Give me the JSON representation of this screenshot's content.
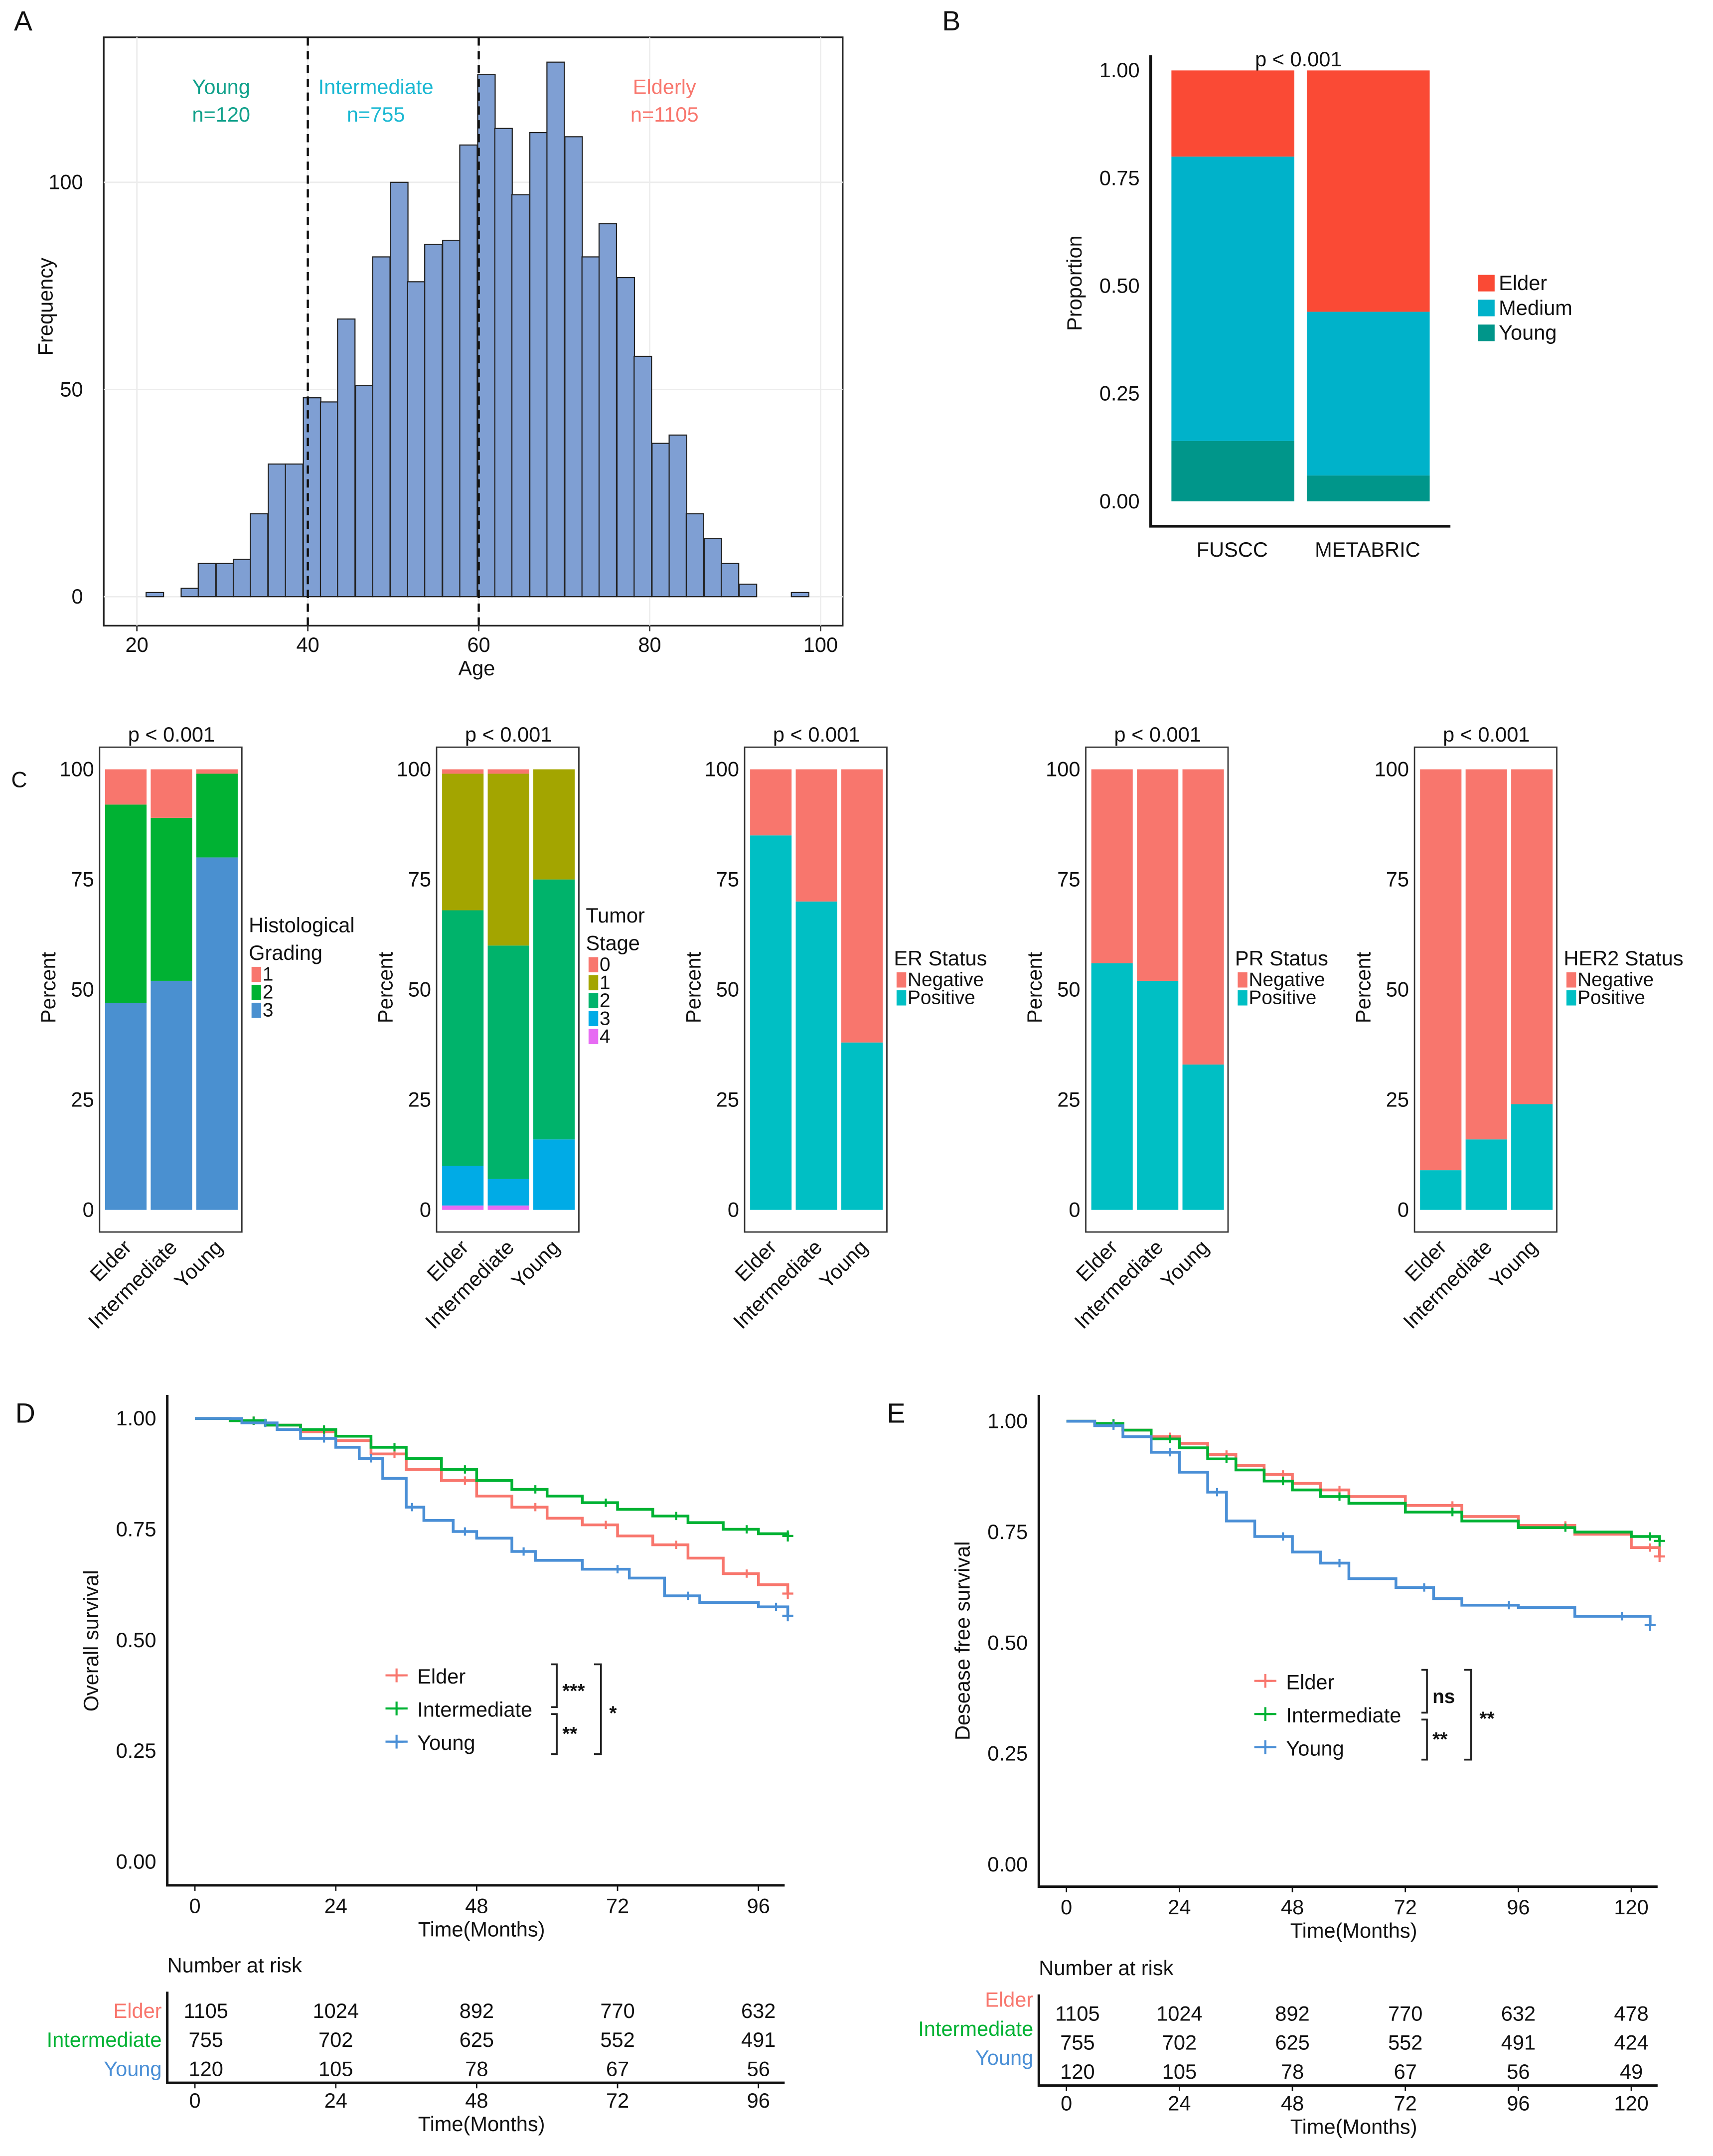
{
  "chart_data": [
    {
      "panel": "A",
      "type": "bar",
      "subtype": "histogram",
      "xlabel": "Age",
      "ylabel": "Frequency",
      "xlim": [
        17,
        103
      ],
      "ylim": [
        -7,
        135
      ],
      "xticks": [
        "20",
        "40",
        "60",
        "80",
        "100"
      ],
      "xtick_values": [
        20,
        40,
        60,
        80,
        100
      ],
      "yticks": [
        "0",
        "50",
        "100"
      ],
      "ytick_values": [
        0,
        50,
        100
      ],
      "grid": true,
      "binwidth": 2.04,
      "bin_centers": [
        22.1,
        24.1,
        26.2,
        28.2,
        30.3,
        32.3,
        34.3,
        36.4,
        38.4,
        40.5,
        42.5,
        44.5,
        46.6,
        48.6,
        50.7,
        52.7,
        54.7,
        56.8,
        58.8,
        60.9,
        62.9,
        64.9,
        67.0,
        69.0,
        71.1,
        73.1,
        75.1,
        77.2,
        79.2,
        81.3,
        83.3,
        85.3,
        87.4,
        89.4,
        91.5,
        93.5,
        95.5,
        97.6
      ],
      "counts": [
        1,
        0,
        2,
        8,
        8,
        9,
        20,
        32,
        32,
        48,
        47,
        67,
        51,
        82,
        100,
        76,
        85,
        86,
        109,
        126,
        113,
        97,
        112,
        129,
        111,
        82,
        90,
        77,
        58,
        37,
        39,
        20,
        14,
        8,
        3,
        0,
        0,
        1
      ],
      "cutoffs": [
        40,
        60
      ],
      "bar_color": "#7f9fd3",
      "annotations": [
        {
          "label": "Young",
          "n": "n=120",
          "color": "#0fa08a"
        },
        {
          "label": "Intermediate",
          "n": "n=755",
          "color": "#1ab8d2"
        },
        {
          "label": "Elderly",
          "n": "n=1105",
          "color": "#f8766d"
        }
      ]
    },
    {
      "panel": "B",
      "type": "bar",
      "subtype": "stacked",
      "ylabel": "Proportion",
      "pvalue": "p < 0.001",
      "categories": [
        "FUSCC",
        "METABRIC"
      ],
      "yticks": [
        "0.00",
        "0.25",
        "0.50",
        "0.75",
        "1.00"
      ],
      "ytick_values": [
        0,
        0.25,
        0.5,
        0.75,
        1
      ],
      "legend_placement": "right",
      "series": [
        {
          "name": "Elder",
          "values": [
            0.2,
            0.56
          ],
          "color": "#fa4a35"
        },
        {
          "name": "Medium",
          "values": [
            0.66,
            0.38
          ],
          "color": "#00b2ca"
        },
        {
          "name": "Young",
          "values": [
            0.14,
            0.06
          ],
          "color": "#00968a"
        }
      ]
    },
    {
      "panel": "C",
      "type": "bar",
      "subtype": "stacked",
      "ylabel": "Percent",
      "pvalue": "p < 0.001",
      "categories": [
        "Elder",
        "Intermediate",
        "Young"
      ],
      "yticks": [
        "0",
        "25",
        "50",
        "75",
        "100"
      ],
      "ytick_values": [
        0,
        25,
        50,
        75,
        100
      ],
      "legend_title": [
        "Histological",
        "Grading"
      ],
      "series": [
        {
          "name": "1",
          "values": [
            8,
            11,
            1
          ],
          "color": "#f8766d"
        },
        {
          "name": "2",
          "values": [
            45,
            37,
            19
          ],
          "color": "#00b233"
        },
        {
          "name": "3",
          "values": [
            47,
            52,
            80
          ],
          "color": "#4a90d0"
        }
      ]
    },
    {
      "type": "bar",
      "subtype": "stacked",
      "ylabel": "Percent",
      "pvalue": "p < 0.001",
      "categories": [
        "Elder",
        "Intermediate",
        "Young"
      ],
      "yticks": [
        "0",
        "25",
        "50",
        "75",
        "100"
      ],
      "ytick_values": [
        0,
        25,
        50,
        75,
        100
      ],
      "legend_title": [
        "Tumor",
        "Stage"
      ],
      "series": [
        {
          "name": "0",
          "values": [
            1,
            1,
            0
          ],
          "color": "#f8766d"
        },
        {
          "name": "1",
          "values": [
            31,
            39,
            25
          ],
          "color": "#a3a500"
        },
        {
          "name": "2",
          "values": [
            58,
            53,
            59
          ],
          "color": "#00b36b"
        },
        {
          "name": "3",
          "values": [
            9,
            6,
            16
          ],
          "color": "#00abe6"
        },
        {
          "name": "4",
          "values": [
            1,
            1,
            0
          ],
          "color": "#e76bf3"
        }
      ]
    },
    {
      "type": "bar",
      "subtype": "stacked",
      "ylabel": "Percent",
      "pvalue": "p < 0.001",
      "categories": [
        "Elder",
        "Intermediate",
        "Young"
      ],
      "yticks": [
        "0",
        "25",
        "50",
        "75",
        "100"
      ],
      "ytick_values": [
        0,
        25,
        50,
        75,
        100
      ],
      "legend_title": [
        "ER Status"
      ],
      "series": [
        {
          "name": "Negative",
          "values": [
            15,
            30,
            62
          ],
          "color": "#f8766d"
        },
        {
          "name": "Positive",
          "values": [
            85,
            70,
            38
          ],
          "color": "#00bfc4"
        }
      ]
    },
    {
      "type": "bar",
      "subtype": "stacked",
      "ylabel": "Percent",
      "pvalue": "p < 0.001",
      "categories": [
        "Elder",
        "Intermediate",
        "Young"
      ],
      "yticks": [
        "0",
        "25",
        "50",
        "75",
        "100"
      ],
      "ytick_values": [
        0,
        25,
        50,
        75,
        100
      ],
      "legend_title": [
        "PR Status"
      ],
      "series": [
        {
          "name": "Negative",
          "values": [
            44,
            48,
            67
          ],
          "color": "#f8766d"
        },
        {
          "name": "Positive",
          "values": [
            56,
            52,
            33
          ],
          "color": "#00bfc4"
        }
      ]
    },
    {
      "type": "bar",
      "subtype": "stacked",
      "ylabel": "Percent",
      "pvalue": "p < 0.001",
      "categories": [
        "Elder",
        "Intermediate",
        "Young"
      ],
      "yticks": [
        "0",
        "25",
        "50",
        "75",
        "100"
      ],
      "ytick_values": [
        0,
        25,
        50,
        75,
        100
      ],
      "legend_title": [
        "HER2 Status"
      ],
      "series": [
        {
          "name": "Negative",
          "values": [
            91,
            84,
            76
          ],
          "color": "#f8766d"
        },
        {
          "name": "Positive",
          "values": [
            9,
            16,
            24
          ],
          "color": "#00bfc4"
        }
      ]
    },
    {
      "panel": "D",
      "type": "line",
      "subtype": "kaplan-meier",
      "xlabel": "Time(Months)",
      "ylabel": "Overall survival",
      "xticks": [
        "0",
        "24",
        "48",
        "72",
        "96"
      ],
      "xtick_values": [
        0,
        24,
        48,
        72,
        96
      ],
      "yticks": [
        "0.00",
        "0.25",
        "0.50",
        "0.75",
        "1.00"
      ],
      "ytick_values": [
        0,
        0.25,
        0.5,
        0.75,
        1
      ],
      "legend_placement": "center",
      "series": [
        {
          "name": "Elder",
          "color": "#f8766d",
          "points": [
            [
              0,
              1
            ],
            [
              6,
              0.995
            ],
            [
              12,
              0.985
            ],
            [
              18,
              0.97
            ],
            [
              24,
              0.95
            ],
            [
              30,
              0.92
            ],
            [
              36,
              0.885
            ],
            [
              42,
              0.86
            ],
            [
              48,
              0.825
            ],
            [
              54,
              0.8
            ],
            [
              60,
              0.775
            ],
            [
              66,
              0.76
            ],
            [
              72,
              0.735
            ],
            [
              78,
              0.715
            ],
            [
              84,
              0.685
            ],
            [
              90,
              0.65
            ],
            [
              96,
              0.625
            ],
            [
              101,
              0.605
            ]
          ]
        },
        {
          "name": "Intermediate",
          "color": "#00b233",
          "points": [
            [
              0,
              1
            ],
            [
              6,
              0.995
            ],
            [
              12,
              0.985
            ],
            [
              18,
              0.975
            ],
            [
              24,
              0.96
            ],
            [
              30,
              0.935
            ],
            [
              36,
              0.91
            ],
            [
              42,
              0.885
            ],
            [
              48,
              0.86
            ],
            [
              54,
              0.84
            ],
            [
              60,
              0.825
            ],
            [
              66,
              0.81
            ],
            [
              72,
              0.795
            ],
            [
              78,
              0.78
            ],
            [
              84,
              0.765
            ],
            [
              90,
              0.75
            ],
            [
              96,
              0.74
            ],
            [
              101,
              0.735
            ]
          ]
        },
        {
          "name": "Young",
          "color": "#4a8fd6",
          "points": [
            [
              0,
              1
            ],
            [
              8,
              0.99
            ],
            [
              14,
              0.975
            ],
            [
              18,
              0.955
            ],
            [
              24,
              0.935
            ],
            [
              28,
              0.91
            ],
            [
              32,
              0.865
            ],
            [
              36,
              0.8
            ],
            [
              39,
              0.77
            ],
            [
              44,
              0.745
            ],
            [
              48,
              0.73
            ],
            [
              54,
              0.7
            ],
            [
              58,
              0.68
            ],
            [
              66,
              0.66
            ],
            [
              74,
              0.64
            ],
            [
              80,
              0.6
            ],
            [
              86,
              0.585
            ],
            [
              96,
              0.575
            ],
            [
              101,
              0.555
            ]
          ]
        }
      ],
      "significance": {
        "elder_vs_intermediate": "***",
        "intermediate_vs_young": "**",
        "elder_vs_young": "*"
      },
      "risk_table": {
        "title": "Number at risk",
        "rows": [
          {
            "name": "Elder",
            "color": "#f8766d",
            "values": [
              "1105",
              "1024",
              "892",
              "770",
              "632"
            ]
          },
          {
            "name": "Intermediate",
            "color": "#00b233",
            "values": [
              "755",
              "702",
              "625",
              "552",
              "491"
            ]
          },
          {
            "name": "Young",
            "color": "#4a8fd6",
            "values": [
              "120",
              "105",
              "78",
              "67",
              "56"
            ]
          }
        ]
      }
    },
    {
      "panel": "E",
      "type": "line",
      "subtype": "kaplan-meier",
      "xlabel": "Time(Months)",
      "ylabel": "Desease free survival",
      "xticks": [
        "0",
        "24",
        "48",
        "72",
        "96",
        "120"
      ],
      "xtick_values": [
        0,
        24,
        48,
        72,
        96,
        120
      ],
      "yticks": [
        "0.00",
        "0.25",
        "0.50",
        "0.75",
        "1.00"
      ],
      "ytick_values": [
        0,
        0.25,
        0.5,
        0.75,
        1
      ],
      "legend_placement": "center",
      "series": [
        {
          "name": "Elder",
          "color": "#f8766d",
          "points": [
            [
              0,
              1
            ],
            [
              6,
              0.995
            ],
            [
              12,
              0.98
            ],
            [
              18,
              0.965
            ],
            [
              24,
              0.95
            ],
            [
              30,
              0.925
            ],
            [
              36,
              0.9
            ],
            [
              42,
              0.88
            ],
            [
              48,
              0.86
            ],
            [
              54,
              0.845
            ],
            [
              60,
              0.83
            ],
            [
              72,
              0.81
            ],
            [
              84,
              0.785
            ],
            [
              96,
              0.765
            ],
            [
              108,
              0.745
            ],
            [
              120,
              0.715
            ],
            [
              126,
              0.695
            ]
          ]
        },
        {
          "name": "Intermediate",
          "color": "#00b233",
          "points": [
            [
              0,
              1
            ],
            [
              6,
              0.995
            ],
            [
              12,
              0.98
            ],
            [
              18,
              0.96
            ],
            [
              24,
              0.94
            ],
            [
              30,
              0.915
            ],
            [
              36,
              0.89
            ],
            [
              42,
              0.865
            ],
            [
              48,
              0.845
            ],
            [
              54,
              0.83
            ],
            [
              60,
              0.815
            ],
            [
              72,
              0.795
            ],
            [
              84,
              0.775
            ],
            [
              96,
              0.76
            ],
            [
              108,
              0.75
            ],
            [
              120,
              0.74
            ],
            [
              126,
              0.73
            ]
          ]
        },
        {
          "name": "Young",
          "color": "#4a8fd6",
          "points": [
            [
              0,
              1
            ],
            [
              6,
              0.99
            ],
            [
              12,
              0.965
            ],
            [
              18,
              0.93
            ],
            [
              24,
              0.885
            ],
            [
              30,
              0.84
            ],
            [
              34,
              0.775
            ],
            [
              40,
              0.74
            ],
            [
              48,
              0.705
            ],
            [
              54,
              0.68
            ],
            [
              60,
              0.645
            ],
            [
              70,
              0.625
            ],
            [
              78,
              0.6
            ],
            [
              84,
              0.585
            ],
            [
              96,
              0.58
            ],
            [
              108,
              0.56
            ],
            [
              120,
              0.56
            ],
            [
              124,
              0.54
            ]
          ]
        }
      ],
      "significance": {
        "elder_vs_intermediate": "ns",
        "intermediate_vs_young": "**",
        "elder_vs_young": "**"
      },
      "risk_table": {
        "title": "Number at risk",
        "rows": [
          {
            "name": "Elder",
            "color": "#f8766d",
            "values": [
              "1105",
              "1024",
              "892",
              "770",
              "632",
              "478"
            ]
          },
          {
            "name": "Intermediate",
            "color": "#00b233",
            "values": [
              "755",
              "702",
              "625",
              "552",
              "491",
              "424"
            ]
          },
          {
            "name": "Young",
            "color": "#4a8fd6",
            "values": [
              "120",
              "105",
              "78",
              "67",
              "56",
              "49"
            ]
          }
        ]
      }
    }
  ]
}
